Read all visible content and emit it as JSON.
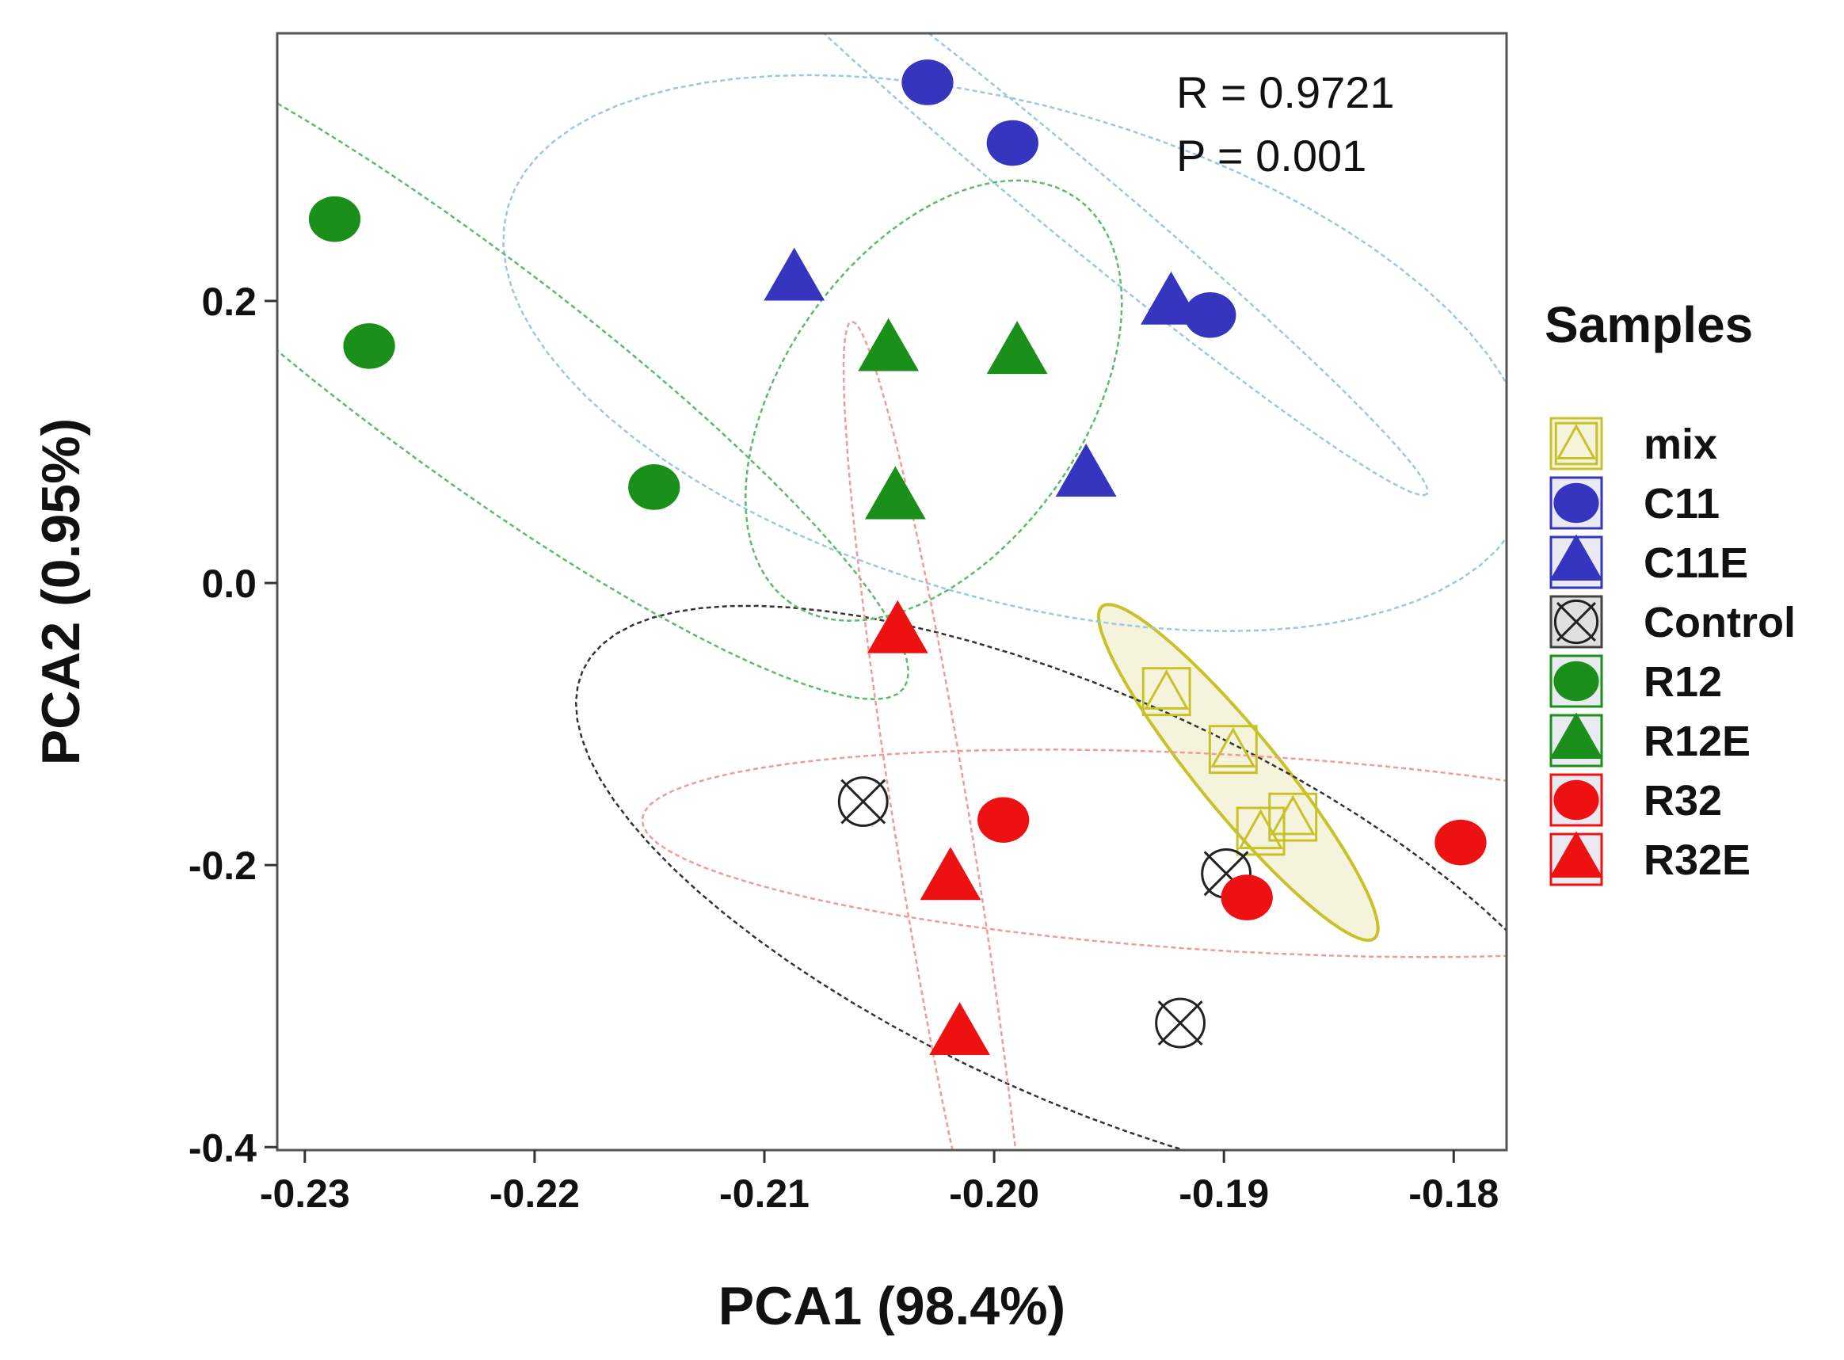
{
  "chart_data": {
    "type": "scatter",
    "title": "",
    "xlabel": "PCA1 (98.4%)",
    "ylabel": "PCA2 (0.95%)",
    "xlim": [
      -0.2312,
      -0.1777
    ],
    "ylim": [
      -0.4021,
      0.3898
    ],
    "xticks": [
      -0.23,
      -0.22,
      -0.21,
      -0.2,
      -0.19,
      -0.18
    ],
    "xtick_labels": [
      "-0.23",
      "-0.22",
      "-0.21",
      "-0.20",
      "-0.19",
      "-0.18"
    ],
    "yticks": [
      -0.4,
      -0.2,
      0.0,
      0.2
    ],
    "ytick_labels": [
      "-0.4",
      "-0.2",
      "0.0",
      "0.2"
    ],
    "grid": false,
    "annotations": [
      "R = 0.9721",
      "P = 0.001"
    ],
    "legend": {
      "title": "Samples",
      "position": "right"
    },
    "series": [
      {
        "name": "mix",
        "marker": "open-triangle-in-square",
        "color": "#c8c22a",
        "ellipse_fill": "#f6f3dc",
        "ellipse_style": "solid",
        "points": [
          [
            -0.1925,
            -0.077
          ],
          [
            -0.1896,
            -0.118
          ],
          [
            -0.187,
            -0.166
          ],
          [
            -0.1884,
            -0.176
          ]
        ]
      },
      {
        "name": "C11",
        "marker": "circle",
        "color": "#3535bf",
        "ellipse_color": "#9cc6e6",
        "points": [
          [
            -0.2029,
            0.355
          ],
          [
            -0.1992,
            0.312
          ],
          [
            -0.1906,
            0.19
          ]
        ]
      },
      {
        "name": "C11E",
        "marker": "triangle",
        "color": "#3535bf",
        "ellipse_color": "#9cc6e6",
        "points": [
          [
            -0.2087,
            0.215
          ],
          [
            -0.1923,
            0.198
          ],
          [
            -0.196,
            0.076
          ]
        ]
      },
      {
        "name": "Control",
        "marker": "circle-x",
        "color": "#222222",
        "ellipse_color": "#333333",
        "points": [
          [
            -0.2057,
            -0.155
          ],
          [
            -0.1899,
            -0.206
          ],
          [
            -0.1919,
            -0.312
          ]
        ]
      },
      {
        "name": "R12",
        "marker": "circle",
        "color": "#1a8f1a",
        "ellipse_color": "#5cbb6a",
        "points": [
          [
            -0.2287,
            0.258
          ],
          [
            -0.2272,
            0.168
          ],
          [
            -0.2148,
            0.068
          ]
        ]
      },
      {
        "name": "R12E",
        "marker": "triangle",
        "color": "#1a8f1a",
        "ellipse_color": "#5cbb6a",
        "points": [
          [
            -0.2046,
            0.165
          ],
          [
            -0.199,
            0.163
          ],
          [
            -0.2043,
            0.06
          ]
        ]
      },
      {
        "name": "R32",
        "marker": "circle",
        "color": "#ee1111",
        "ellipse_color": "#f29a9a",
        "points": [
          [
            -0.1996,
            -0.168
          ],
          [
            -0.189,
            -0.223
          ],
          [
            -0.1797,
            -0.184
          ]
        ]
      },
      {
        "name": "R32E",
        "marker": "triangle",
        "color": "#ee1111",
        "ellipse_color": "#f29a9a",
        "points": [
          [
            -0.2042,
            -0.035
          ],
          [
            -0.2019,
            -0.21
          ],
          [
            -0.2015,
            -0.32
          ]
        ]
      }
    ]
  }
}
